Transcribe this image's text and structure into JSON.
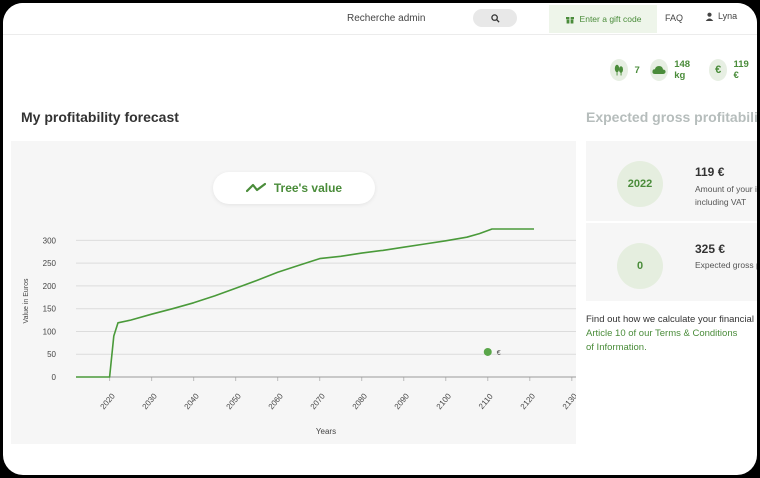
{
  "header": {
    "search_value": "Recherche admin",
    "gift_label": "Enter a gift code",
    "faq_label": "FAQ",
    "user_name": "Lyna"
  },
  "stats": {
    "trees": "7",
    "co2": "148 kg",
    "money": "119 €",
    "money_symbol": "€"
  },
  "forecast": {
    "title": "My profitability forecast",
    "legend_label": "Tree's value"
  },
  "expected": {
    "title": "Expected gross profitability",
    "rows": [
      {
        "badge": "2022",
        "value": "119 €",
        "label_line1": "Amount of your investment",
        "label_line2": "including VAT"
      },
      {
        "badge": "0",
        "value": "325 €",
        "label_line1": "Expected gross profit",
        "label_line2": ""
      }
    ],
    "info_text": "Find out how we calculate your financial",
    "info_link1": "Article 10 of our Terms & Conditions",
    "info_link2": "of Information."
  },
  "chart_data": {
    "type": "line",
    "xlabel": "Years",
    "ylabel": "Value in Euros",
    "xlim": [
      2012,
      2131
    ],
    "ylim": [
      0,
      325
    ],
    "x_ticks": [
      2020,
      2030,
      2040,
      2050,
      2060,
      2070,
      2080,
      2090,
      2100,
      2110,
      2120,
      2130
    ],
    "y_ticks": [
      0,
      50,
      100,
      150,
      200,
      250,
      300
    ],
    "grid": true,
    "marker": {
      "x": 2110,
      "y": 55,
      "label": "€"
    },
    "series": [
      {
        "color": "#4a9a3a",
        "points": [
          [
            2012,
            0
          ],
          [
            2020,
            0
          ],
          [
            2021,
            90
          ],
          [
            2022,
            119
          ],
          [
            2025,
            125
          ],
          [
            2030,
            138
          ],
          [
            2035,
            150
          ],
          [
            2040,
            163
          ],
          [
            2045,
            178
          ],
          [
            2050,
            195
          ],
          [
            2055,
            212
          ],
          [
            2060,
            230
          ],
          [
            2065,
            245
          ],
          [
            2070,
            260
          ],
          [
            2075,
            265
          ],
          [
            2080,
            272
          ],
          [
            2085,
            278
          ],
          [
            2090,
            285
          ],
          [
            2095,
            292
          ],
          [
            2100,
            299
          ],
          [
            2105,
            307
          ],
          [
            2108,
            315
          ],
          [
            2111,
            325
          ],
          [
            2121,
            325
          ]
        ]
      }
    ]
  }
}
